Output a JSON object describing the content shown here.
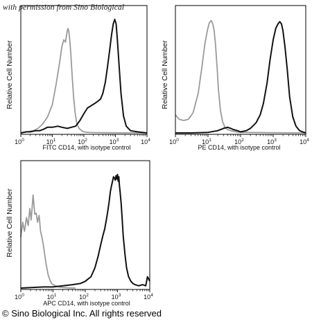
{
  "watermark": "with permission from Sino Biological",
  "copyright": "© Sino Biological Inc. All rights reserved",
  "colors": {
    "sample": "#111111",
    "isotype": "#9a9a9a",
    "axis": "#000000"
  },
  "chart_data": [
    {
      "type": "line",
      "title": "",
      "xlabel": "FITC  CD14,  with isotype control",
      "ylabel": "Relative Cell Number",
      "xscale": "log",
      "xlim": [
        1,
        10000
      ],
      "ylim": [
        0,
        100
      ],
      "xticks": [
        {
          "base": "10",
          "exp": "0",
          "value": 1
        },
        {
          "base": "10",
          "exp": "1",
          "value": 10
        },
        {
          "base": "10",
          "exp": "2",
          "value": 100
        },
        {
          "base": "10",
          "exp": "3",
          "value": 1000
        },
        {
          "base": "10",
          "exp": "4",
          "value": 10000
        }
      ],
      "series": [
        {
          "role": "isotype",
          "x": [
            1,
            1.6,
            2.5,
            3.5,
            5,
            7,
            10,
            13,
            17,
            20,
            23,
            26,
            29,
            31,
            33,
            35,
            38,
            42,
            47,
            53,
            60,
            70,
            85,
            100,
            130,
            200,
            400,
            1000,
            10000
          ],
          "y": [
            0,
            1,
            2,
            4,
            8,
            14,
            25,
            42,
            62,
            76,
            82,
            80,
            88,
            92,
            90,
            84,
            72,
            52,
            32,
            17,
            8,
            4,
            2,
            1,
            0.5,
            0.3,
            0.2,
            0.1,
            0
          ]
        },
        {
          "role": "sample",
          "x": [
            1,
            1.5,
            2,
            3,
            4,
            5,
            7,
            10,
            15,
            20,
            30,
            40,
            55,
            75,
            100,
            130,
            170,
            220,
            280,
            340,
            400,
            480,
            560,
            650,
            750,
            850,
            950,
            1050,
            1150,
            1300,
            1500,
            1800,
            2200,
            3000,
            5000,
            10000
          ],
          "y": [
            0,
            1,
            1,
            2,
            2,
            3,
            5,
            5,
            6,
            5,
            4,
            5,
            6,
            11,
            17,
            22,
            24,
            26,
            28,
            30,
            35,
            45,
            58,
            72,
            86,
            96,
            100,
            96,
            82,
            60,
            35,
            15,
            6,
            2,
            1,
            0
          ]
        }
      ]
    },
    {
      "type": "line",
      "title": "",
      "xlabel": "PE  CD14,  with isotype control",
      "ylabel": "Relative Cell Number",
      "xscale": "log",
      "xlim": [
        1,
        10000
      ],
      "ylim": [
        0,
        100
      ],
      "xticks": [
        {
          "base": "10",
          "exp": "0",
          "value": 1
        },
        {
          "base": "10",
          "exp": "1",
          "value": 10
        },
        {
          "base": "10",
          "exp": "2",
          "value": 100
        },
        {
          "base": "10",
          "exp": "3",
          "value": 1000
        },
        {
          "base": "10",
          "exp": "4",
          "value": 10000
        }
      ],
      "series": [
        {
          "role": "isotype",
          "x": [
            1,
            1.3,
            1.8,
            2.5,
            3.5,
            5,
            6.5,
            8,
            9.5,
            11,
            12.5,
            14,
            15.5,
            17,
            19,
            21,
            24,
            28,
            33,
            40,
            50,
            70,
            100,
            1000,
            10000
          ],
          "y": [
            16,
            12,
            11,
            12,
            18,
            35,
            58,
            78,
            90,
            97,
            99,
            96,
            90,
            78,
            58,
            38,
            20,
            10,
            5,
            3,
            2,
            1,
            0.5,
            0.2,
            0
          ]
        },
        {
          "role": "sample",
          "x": [
            1,
            3,
            10,
            20,
            30,
            40,
            50,
            60,
            80,
            100,
            150,
            200,
            300,
            400,
            500,
            650,
            800,
            1000,
            1200,
            1400,
            1600,
            1800,
            2000,
            2300,
            2700,
            3200,
            4000,
            5000,
            6500,
            8000,
            10000
          ],
          "y": [
            0,
            0,
            0.5,
            2,
            4,
            5,
            4,
            3,
            2,
            1,
            2,
            4,
            9,
            16,
            26,
            44,
            64,
            82,
            92,
            96,
            98,
            96,
            90,
            76,
            56,
            32,
            14,
            6,
            2,
            1,
            0
          ]
        }
      ]
    },
    {
      "type": "line",
      "title": "",
      "xlabel": "APC CD14, with isotype control",
      "ylabel": "Relative Cell Number",
      "xscale": "log",
      "xlim": [
        1,
        10000
      ],
      "ylim": [
        0,
        100
      ],
      "xticks": [
        {
          "base": "10",
          "exp": "0",
          "value": 1
        },
        {
          "base": "10",
          "exp": "1",
          "value": 10
        },
        {
          "base": "10",
          "exp": "2",
          "value": 100
        },
        {
          "base": "10",
          "exp": "3",
          "value": 1000
        },
        {
          "base": "10",
          "exp": "4",
          "value": 10000
        }
      ],
      "series": [
        {
          "role": "isotype",
          "x": [
            1,
            1.15,
            1.3,
            1.5,
            1.7,
            1.9,
            2.1,
            2.4,
            2.7,
            3,
            3.3,
            3.7,
            4.1,
            4.5,
            5,
            5.5,
            6,
            6.5,
            7,
            8,
            9,
            10,
            12,
            15,
            20,
            30,
            50
          ],
          "y": [
            45,
            58,
            50,
            62,
            55,
            70,
            60,
            82,
            65,
            66,
            58,
            64,
            50,
            45,
            38,
            30,
            22,
            17,
            12,
            7,
            4,
            3,
            2,
            1,
            0.5,
            0.2,
            0
          ]
        },
        {
          "role": "sample",
          "x": [
            1,
            5,
            10,
            20,
            40,
            70,
            100,
            150,
            200,
            250,
            300,
            350,
            400,
            450,
            500,
            550,
            600,
            650,
            700,
            750,
            800,
            850,
            900,
            950,
            1000,
            1050,
            1100,
            1150,
            1200,
            1300,
            1400,
            1500,
            1700,
            1900,
            2200,
            2600,
            3000,
            3500,
            4500,
            6000,
            7500,
            8500,
            10000
          ],
          "y": [
            0,
            1,
            1,
            2,
            3,
            4,
            6,
            10,
            18,
            28,
            38,
            46,
            52,
            60,
            68,
            76,
            85,
            90,
            94,
            98,
            97,
            95,
            99,
            96,
            100,
            94,
            98,
            90,
            85,
            74,
            60,
            46,
            30,
            18,
            10,
            6,
            4,
            3,
            2,
            3,
            2,
            10,
            6
          ]
        }
      ]
    }
  ]
}
